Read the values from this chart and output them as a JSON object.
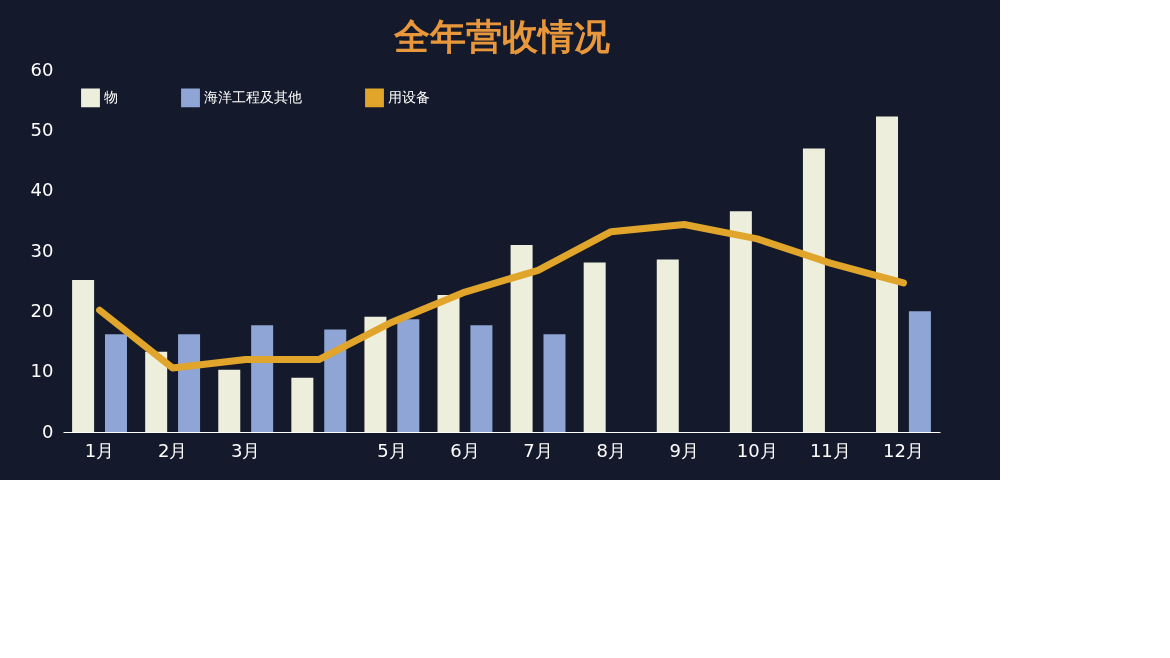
{
  "chart_data": {
    "type": "bar",
    "title": "全年营收情况",
    "categories": [
      "1月",
      "2月",
      "3月",
      null,
      "5月",
      "6月",
      "7月",
      "8月",
      "9月",
      "10月",
      "11月",
      "12月"
    ],
    "series": [
      {
        "name": "物",
        "color": "#eeeedd",
        "values": [
          25.2,
          13.3,
          10.3,
          9,
          19.1,
          22.7,
          31,
          28.1,
          28.6,
          36.6,
          47,
          52.3
        ]
      },
      {
        "name": "海洋工程及其他",
        "color": "#8fa5d6",
        "values": [
          16.2,
          16.2,
          17.7,
          17,
          18.7,
          17.7,
          16.2,
          null,
          null,
          null,
          null,
          20
        ]
      },
      {
        "name": "用设备",
        "type": "line",
        "color": "#e0a52a",
        "values": [
          20.2,
          10.6,
          12,
          12,
          18.2,
          23.2,
          26.8,
          33.2,
          34.4,
          32,
          28,
          24.7
        ]
      }
    ],
    "ylim": [
      0,
      60
    ],
    "yticks": [
      0,
      10,
      20,
      30,
      40,
      50,
      60
    ],
    "grid": false,
    "legend": "top left",
    "line_style": "solid",
    "marker": "none"
  }
}
